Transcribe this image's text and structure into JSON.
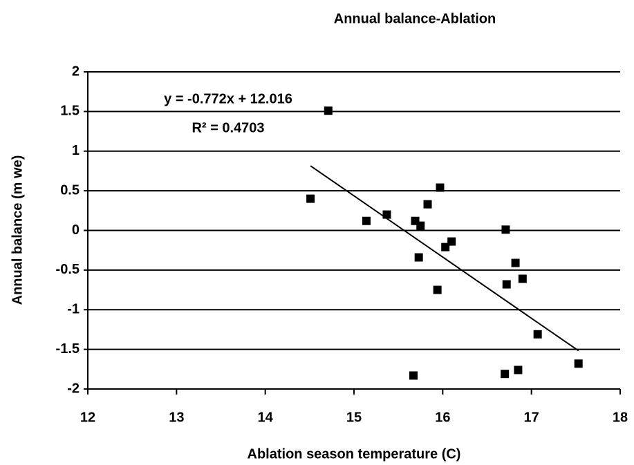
{
  "chart_data": {
    "type": "scatter",
    "title": "Annual balance-Ablation",
    "x_label": "Ablation season temperature (C)",
    "y_label": "Annual balance (m we)",
    "series": [
      {
        "name": "Annual balance",
        "color": "#000000",
        "x": [
          14.51,
          14.71,
          15.14,
          15.37,
          15.69,
          15.75,
          15.83,
          15.97,
          16.1,
          16.03,
          15.73,
          15.94,
          15.67,
          16.71,
          16.82,
          16.9,
          16.72,
          17.07,
          17.53,
          16.7,
          16.85
        ],
        "values": [
          0.4,
          1.51,
          0.12,
          0.2,
          0.12,
          0.06,
          0.33,
          0.54,
          -0.14,
          -0.21,
          -0.34,
          -0.75,
          -1.83,
          0.01,
          -0.41,
          -0.61,
          -0.68,
          -1.31,
          -1.68,
          -1.81,
          -1.76
        ]
      }
    ],
    "trendline": {
      "slope": -0.772,
      "intercept": 12.016,
      "label": "y = -0.772x + 12.016",
      "r_squared_label": "R² = 0.4703"
    },
    "xlim": [
      12,
      18
    ],
    "xticks": [
      12,
      13,
      14,
      15,
      16,
      17,
      18
    ],
    "ylim": [
      -2,
      2
    ],
    "yticks": [
      -2,
      -1.5,
      -1,
      -0.5,
      0,
      0.5,
      1,
      1.5,
      2
    ],
    "grid": true
  }
}
